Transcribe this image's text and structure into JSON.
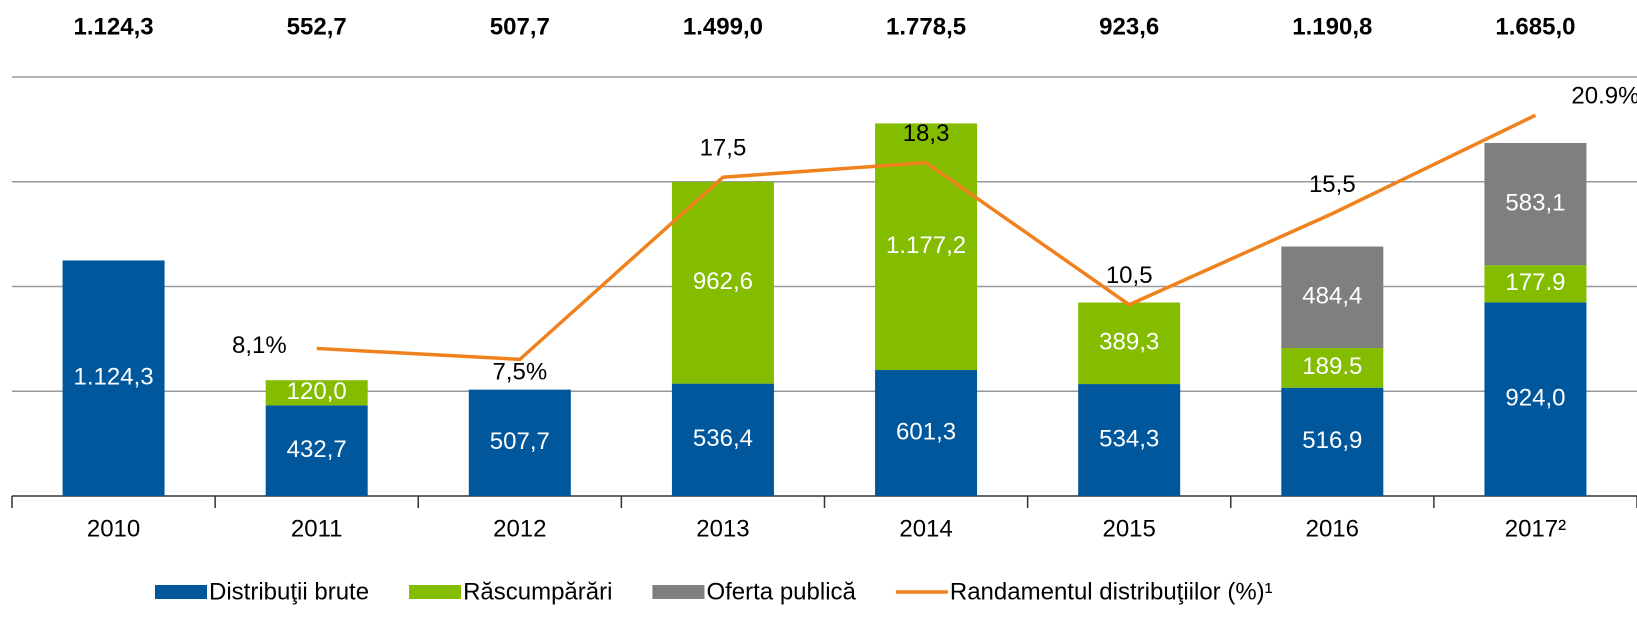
{
  "chart_data": {
    "type": "stacked-bar-line",
    "categories": [
      "2010",
      "2011",
      "2012",
      "2013",
      "2014",
      "2015",
      "2016",
      "2017²"
    ],
    "series": [
      {
        "name": "Distribuţii brute",
        "color": "#00579c",
        "values": [
          1124.3,
          432.7,
          507.7,
          536.4,
          601.3,
          534.3,
          516.9,
          924.0
        ],
        "value_labels": [
          "1.124,3",
          "432,7",
          "507,7",
          "536,4",
          "601,3",
          "534,3",
          "516,9",
          "924,0"
        ]
      },
      {
        "name": "Răscumpărări",
        "color": "#84bd00",
        "values": [
          null,
          120.0,
          null,
          962.6,
          1177.2,
          389.3,
          189.5,
          177.9
        ],
        "value_labels": [
          null,
          "120,0",
          null,
          "962,6",
          "1.177,2",
          "389,3",
          "189.5",
          "177.9"
        ]
      },
      {
        "name": "Oferta publică",
        "color": "#7f7f7f",
        "values": [
          null,
          null,
          null,
          null,
          null,
          null,
          484.4,
          583.1
        ],
        "value_labels": [
          null,
          null,
          null,
          null,
          null,
          null,
          "484,4",
          "583,1"
        ]
      },
      {
        "name": "Randamentul distribuţiilor (%)¹",
        "color": "#f0821e",
        "type": "line",
        "axis": "y2",
        "values": [
          null,
          8.1,
          7.5,
          17.5,
          18.3,
          10.5,
          15.5,
          20.9
        ],
        "value_labels": [
          null,
          "8,1%",
          "7,5%",
          "17,5",
          "18,3",
          "10,5",
          "15,5",
          "20.9%"
        ]
      }
    ],
    "totals": {
      "values": [
        1124.3,
        552.7,
        507.7,
        1499.0,
        1778.5,
        923.6,
        1190.8,
        1685.0
      ],
      "value_labels": [
        "1.124,3",
        "552,7",
        "507,7",
        "1.499,0",
        "1.778,5",
        "923,6",
        "1.190,8",
        "1.685,0"
      ]
    },
    "ylim": [
      0,
      2000
    ],
    "yticks": [
      0,
      500,
      1000,
      1500,
      2000
    ],
    "y2lim": [
      0,
      23
    ],
    "grid": true
  }
}
